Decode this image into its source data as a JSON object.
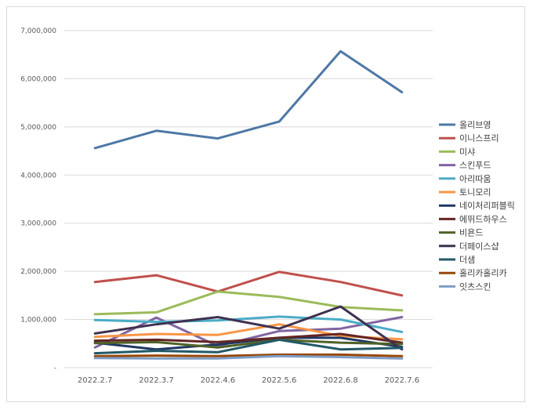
{
  "chart_data": {
    "type": "line",
    "title": "",
    "xlabel": "",
    "ylabel": "",
    "categories": [
      "2022.2.7",
      "2022.3.7",
      "2022.4.6",
      "2022.5.6",
      "2022.6.8",
      "2022.7.6"
    ],
    "ylim": [
      0,
      7000000
    ],
    "yticks": [
      {
        "value": 0,
        "label": "-"
      },
      {
        "value": 1000000,
        "label": "1,000,000"
      },
      {
        "value": 2000000,
        "label": "2,000,000"
      },
      {
        "value": 3000000,
        "label": "3,000,000"
      },
      {
        "value": 4000000,
        "label": "4,000,000"
      },
      {
        "value": 5000000,
        "label": "5,000,000"
      },
      {
        "value": 6000000,
        "label": "6,000,000"
      },
      {
        "value": 7000000,
        "label": "7,000,000"
      }
    ],
    "grid": true,
    "legend_position": "right",
    "series": [
      {
        "name": "올리브영",
        "color": "#4e78a5",
        "values": [
          4560000,
          4920000,
          4760000,
          5110000,
          6570000,
          5720000
        ]
      },
      {
        "name": "이니스프리",
        "color": "#c0504d",
        "values": [
          1780000,
          1920000,
          1580000,
          1990000,
          1780000,
          1500000
        ]
      },
      {
        "name": "미샤",
        "color": "#9bbb59",
        "values": [
          1110000,
          1150000,
          1580000,
          1470000,
          1260000,
          1190000
        ]
      },
      {
        "name": "스킨푸드",
        "color": "#8064a2",
        "values": [
          420000,
          1040000,
          450000,
          760000,
          810000,
          1050000
        ]
      },
      {
        "name": "아리따움",
        "color": "#4bacc6",
        "values": [
          990000,
          950000,
          980000,
          1060000,
          1000000,
          740000
        ]
      },
      {
        "name": "토니모리",
        "color": "#f79646",
        "values": [
          640000,
          700000,
          680000,
          900000,
          660000,
          590000
        ]
      },
      {
        "name": "네이처리퍼블릭",
        "color": "#1f3864",
        "values": [
          520000,
          380000,
          480000,
          620000,
          620000,
          430000
        ]
      },
      {
        "name": "에뛰드하우스",
        "color": "#632523",
        "values": [
          560000,
          580000,
          530000,
          620000,
          700000,
          520000
        ]
      },
      {
        "name": "비욘드",
        "color": "#4f6228",
        "values": [
          510000,
          530000,
          420000,
          580000,
          520000,
          490000
        ]
      },
      {
        "name": "더페이스샵",
        "color": "#3f3151",
        "values": [
          710000,
          900000,
          1050000,
          810000,
          1270000,
          380000
        ]
      },
      {
        "name": "더샘",
        "color": "#215968",
        "values": [
          300000,
          350000,
          320000,
          580000,
          380000,
          410000
        ]
      },
      {
        "name": "홀리카홀리카",
        "color": "#984807",
        "values": [
          240000,
          250000,
          240000,
          270000,
          270000,
          240000
        ]
      },
      {
        "name": "잇츠스킨",
        "color": "#7f9ec6",
        "values": [
          200000,
          190000,
          190000,
          240000,
          220000,
          190000
        ]
      }
    ]
  }
}
